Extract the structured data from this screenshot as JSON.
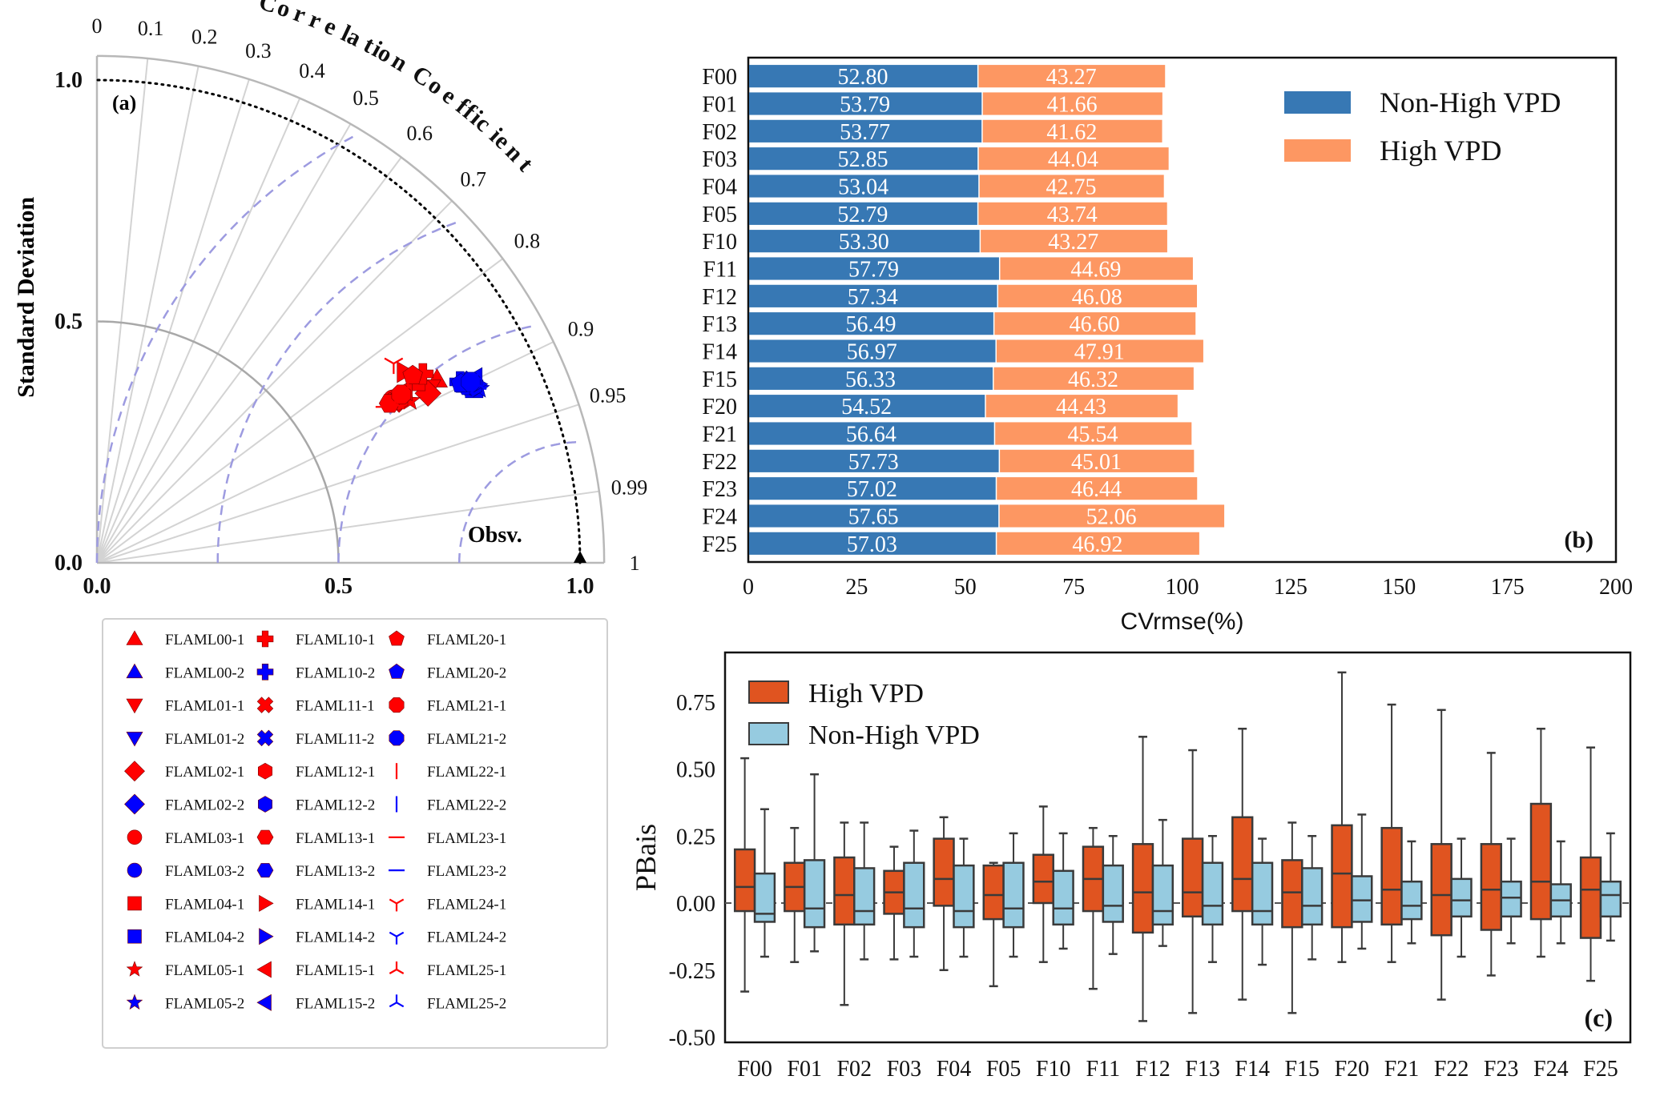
{
  "chart_data": [
    {
      "panel": "a",
      "type": "scatter",
      "subtype": "taylor-diagram",
      "panel_label": "(a)",
      "ylabel": "Standard Deviation",
      "xlabel": "",
      "angular_label": "Correlation Coefficient",
      "std_ticks": [
        "0.0",
        "0.5",
        "1.0"
      ],
      "std_tick_values": [
        0.0,
        0.5,
        1.0
      ],
      "std_max": 1.05,
      "correlation_ticks": [
        0,
        0.1,
        0.2,
        0.3,
        0.4,
        0.5,
        0.6,
        0.7,
        0.8,
        0.9,
        0.95,
        0.99,
        1
      ],
      "correlation_tick_labels": [
        "0",
        "0.1",
        "0.2",
        "0.3",
        "0.4",
        "0.5",
        "0.6",
        "0.7",
        "0.8",
        "0.9",
        "0.95",
        "0.99",
        "1"
      ],
      "rmsd_contours": [
        0.25,
        0.5,
        0.75,
        1.0
      ],
      "reference": {
        "label": "Obsv.",
        "std": 1.0,
        "corr": 1.0
      },
      "grid": true,
      "series_colors": {
        "-1": "#ff0000",
        "-2": "#0000ff"
      },
      "legend": {
        "placement": "below",
        "entries": [
          {
            "label": "FLAML00-1",
            "marker": "triangle-up",
            "color": "#ff0000"
          },
          {
            "label": "FLAML00-2",
            "marker": "triangle-up",
            "color": "#0000ff"
          },
          {
            "label": "FLAML01-1",
            "marker": "triangle-down",
            "color": "#ff0000"
          },
          {
            "label": "FLAML01-2",
            "marker": "triangle-down",
            "color": "#0000ff"
          },
          {
            "label": "FLAML02-1",
            "marker": "diamond",
            "color": "#ff0000"
          },
          {
            "label": "FLAML02-2",
            "marker": "diamond",
            "color": "#0000ff"
          },
          {
            "label": "FLAML03-1",
            "marker": "circle",
            "color": "#ff0000"
          },
          {
            "label": "FLAML03-2",
            "marker": "circle",
            "color": "#0000ff"
          },
          {
            "label": "FLAML04-1",
            "marker": "square",
            "color": "#ff0000"
          },
          {
            "label": "FLAML04-2",
            "marker": "square",
            "color": "#0000ff"
          },
          {
            "label": "FLAML05-1",
            "marker": "star",
            "color": "#ff0000"
          },
          {
            "label": "FLAML05-2",
            "marker": "star",
            "color": "#0000ff"
          },
          {
            "label": "FLAML10-1",
            "marker": "plus-filled",
            "color": "#ff0000"
          },
          {
            "label": "FLAML10-2",
            "marker": "plus-filled",
            "color": "#0000ff"
          },
          {
            "label": "FLAML11-1",
            "marker": "x-filled",
            "color": "#ff0000"
          },
          {
            "label": "FLAML11-2",
            "marker": "x-filled",
            "color": "#0000ff"
          },
          {
            "label": "FLAML12-1",
            "marker": "hexagon-v",
            "color": "#ff0000"
          },
          {
            "label": "FLAML12-2",
            "marker": "hexagon-v",
            "color": "#0000ff"
          },
          {
            "label": "FLAML13-1",
            "marker": "hexagon-h",
            "color": "#ff0000"
          },
          {
            "label": "FLAML13-2",
            "marker": "hexagon-h",
            "color": "#0000ff"
          },
          {
            "label": "FLAML14-1",
            "marker": "triangle-right",
            "color": "#ff0000"
          },
          {
            "label": "FLAML14-2",
            "marker": "triangle-right",
            "color": "#0000ff"
          },
          {
            "label": "FLAML15-1",
            "marker": "triangle-left",
            "color": "#ff0000"
          },
          {
            "label": "FLAML15-2",
            "marker": "triangle-left",
            "color": "#0000ff"
          },
          {
            "label": "FLAML20-1",
            "marker": "pentagon",
            "color": "#ff0000"
          },
          {
            "label": "FLAML20-2",
            "marker": "pentagon",
            "color": "#0000ff"
          },
          {
            "label": "FLAML21-1",
            "marker": "octagon",
            "color": "#ff0000"
          },
          {
            "label": "FLAML21-2",
            "marker": "octagon",
            "color": "#0000ff"
          },
          {
            "label": "FLAML22-1",
            "marker": "vline",
            "color": "#ff0000"
          },
          {
            "label": "FLAML22-2",
            "marker": "vline",
            "color": "#0000ff"
          },
          {
            "label": "FLAML23-1",
            "marker": "hline",
            "color": "#ff0000"
          },
          {
            "label": "FLAML23-2",
            "marker": "hline",
            "color": "#0000ff"
          },
          {
            "label": "FLAML24-1",
            "marker": "tri-down",
            "color": "#ff0000"
          },
          {
            "label": "FLAML24-2",
            "marker": "tri-down",
            "color": "#0000ff"
          },
          {
            "label": "FLAML25-1",
            "marker": "tri-up",
            "color": "#ff0000"
          },
          {
            "label": "FLAML25-2",
            "marker": "tri-up",
            "color": "#0000ff"
          }
        ]
      },
      "points": [
        {
          "label": "FLAML00-1",
          "std": 0.8,
          "corr": 0.88
        },
        {
          "label": "FLAML00-2",
          "std": 0.86,
          "corr": 0.905
        },
        {
          "label": "FLAML01-1",
          "std": 0.78,
          "corr": 0.885
        },
        {
          "label": "FLAML01-2",
          "std": 0.86,
          "corr": 0.9
        },
        {
          "label": "FLAML02-1",
          "std": 0.77,
          "corr": 0.89
        },
        {
          "label": "FLAML02-2",
          "std": 0.85,
          "corr": 0.9
        },
        {
          "label": "FLAML03-1",
          "std": 0.7,
          "corr": 0.875
        },
        {
          "label": "FLAML03-2",
          "std": 0.85,
          "corr": 0.898
        },
        {
          "label": "FLAML04-1",
          "std": 0.76,
          "corr": 0.87
        },
        {
          "label": "FLAML04-2",
          "std": 0.86,
          "corr": 0.908
        },
        {
          "label": "FLAML05-1",
          "std": 0.73,
          "corr": 0.888
        },
        {
          "label": "FLAML05-2",
          "std": 0.87,
          "corr": 0.91
        },
        {
          "label": "FLAML10-1",
          "std": 0.78,
          "corr": 0.865
        },
        {
          "label": "FLAML10-2",
          "std": 0.84,
          "corr": 0.895
        },
        {
          "label": "FLAML11-1",
          "std": 0.7,
          "corr": 0.88
        },
        {
          "label": "FLAML11-2",
          "std": 0.86,
          "corr": 0.903
        },
        {
          "label": "FLAML12-1",
          "std": 0.71,
          "corr": 0.88
        },
        {
          "label": "FLAML12-2",
          "std": 0.86,
          "corr": 0.905
        },
        {
          "label": "FLAML13-1",
          "std": 0.69,
          "corr": 0.878
        },
        {
          "label": "FLAML13-2",
          "std": 0.85,
          "corr": 0.902
        },
        {
          "label": "FLAML14-1",
          "std": 0.75,
          "corr": 0.85
        },
        {
          "label": "FLAML14-2",
          "std": 0.87,
          "corr": 0.905
        },
        {
          "label": "FLAML15-1",
          "std": 0.73,
          "corr": 0.872
        },
        {
          "label": "FLAML15-2",
          "std": 0.87,
          "corr": 0.898
        },
        {
          "label": "FLAML20-1",
          "std": 0.76,
          "corr": 0.86
        },
        {
          "label": "FLAML20-2",
          "std": 0.84,
          "corr": 0.897
        },
        {
          "label": "FLAML21-1",
          "std": 0.72,
          "corr": 0.875
        },
        {
          "label": "FLAML21-2",
          "std": 0.86,
          "corr": 0.9
        },
        {
          "label": "FLAML22-1",
          "std": 0.74,
          "corr": 0.87
        },
        {
          "label": "FLAML22-2",
          "std": 0.86,
          "corr": 0.905
        },
        {
          "label": "FLAML23-1",
          "std": 0.68,
          "corr": 0.88
        },
        {
          "label": "FLAML23-2",
          "std": 0.86,
          "corr": 0.905
        },
        {
          "label": "FLAML24-1",
          "std": 0.74,
          "corr": 0.83
        },
        {
          "label": "FLAML24-2",
          "std": 0.86,
          "corr": 0.902
        },
        {
          "label": "FLAML25-1",
          "std": 0.7,
          "corr": 0.882
        },
        {
          "label": "FLAML25-2",
          "std": 0.87,
          "corr": 0.905
        }
      ]
    },
    {
      "panel": "b",
      "type": "bar",
      "orientation": "horizontal",
      "stacked": true,
      "panel_label": "(b)",
      "title": "",
      "xlabel": "CVrmse(%)",
      "ylabel": "",
      "xlim": [
        0,
        200
      ],
      "xticks": [
        0,
        25,
        50,
        75,
        100,
        125,
        150,
        175,
        200
      ],
      "grid": false,
      "legend_placement": "top-right",
      "categories": [
        "F00",
        "F01",
        "F02",
        "F03",
        "F04",
        "F05",
        "F10",
        "F11",
        "F12",
        "F13",
        "F14",
        "F15",
        "F20",
        "F21",
        "F22",
        "F23",
        "F24",
        "F25"
      ],
      "series": [
        {
          "name": "Non-High VPD",
          "color": "#3778b4",
          "values": [
            52.8,
            53.79,
            53.77,
            52.85,
            53.04,
            52.79,
            53.3,
            57.79,
            57.34,
            56.49,
            56.97,
            56.33,
            54.52,
            56.64,
            57.73,
            57.02,
            57.65,
            57.03
          ],
          "labels": [
            "52.80",
            "53.79",
            "53.77",
            "52.85",
            "53.04",
            "52.79",
            "53.30",
            "57.79",
            "57.34",
            "56.49",
            "56.97",
            "56.33",
            "54.52",
            "56.64",
            "57.73",
            "57.02",
            "57.65",
            "57.03"
          ]
        },
        {
          "name": "High VPD",
          "color": "#fd9762",
          "values": [
            43.27,
            41.66,
            41.62,
            44.04,
            42.75,
            43.74,
            43.27,
            44.69,
            46.08,
            46.6,
            47.91,
            46.32,
            44.43,
            45.54,
            45.01,
            46.44,
            52.06,
            46.92
          ],
          "labels": [
            "43.27",
            "41.66",
            "41.62",
            "44.04",
            "42.75",
            "43.74",
            "43.27",
            "44.69",
            "46.08",
            "46.60",
            "47.91",
            "46.32",
            "44.43",
            "45.54",
            "45.01",
            "46.44",
            "52.06",
            "46.92"
          ]
        }
      ]
    },
    {
      "panel": "c",
      "type": "box",
      "panel_label": "(c)",
      "title": "",
      "xlabel": "",
      "ylabel": "PBais",
      "ylim": [
        -0.5,
        0.9
      ],
      "yticks": [
        -0.5,
        -0.25,
        0.0,
        0.25,
        0.5,
        0.75
      ],
      "ytick_labels": [
        "-0.50",
        "-0.25",
        "0.00",
        "0.25",
        "0.50",
        "0.75"
      ],
      "reference_line": 0.0,
      "grid": false,
      "legend_placement": "top-left",
      "categories": [
        "F00",
        "F01",
        "F02",
        "F03",
        "F04",
        "F05",
        "F10",
        "F11",
        "F12",
        "F13",
        "F14",
        "F15",
        "F20",
        "F21",
        "F22",
        "F23",
        "F24",
        "F25"
      ],
      "series": [
        {
          "name": "High VPD",
          "color": "#e05420",
          "boxes": [
            {
              "whislo": -0.33,
              "q1": -0.03,
              "med": 0.06,
              "q3": 0.2,
              "whishi": 0.54
            },
            {
              "whislo": -0.22,
              "q1": -0.03,
              "med": 0.06,
              "q3": 0.15,
              "whishi": 0.28
            },
            {
              "whislo": -0.38,
              "q1": -0.08,
              "med": 0.03,
              "q3": 0.17,
              "whishi": 0.3
            },
            {
              "whislo": -0.21,
              "q1": -0.04,
              "med": 0.04,
              "q3": 0.12,
              "whishi": 0.21
            },
            {
              "whislo": -0.25,
              "q1": -0.01,
              "med": 0.09,
              "q3": 0.24,
              "whishi": 0.32
            },
            {
              "whislo": -0.31,
              "q1": -0.06,
              "med": 0.03,
              "q3": 0.14,
              "whishi": 0.15
            },
            {
              "whislo": -0.22,
              "q1": 0.0,
              "med": 0.08,
              "q3": 0.18,
              "whishi": 0.36
            },
            {
              "whislo": -0.32,
              "q1": -0.03,
              "med": 0.09,
              "q3": 0.21,
              "whishi": 0.28
            },
            {
              "whislo": -0.44,
              "q1": -0.11,
              "med": 0.04,
              "q3": 0.22,
              "whishi": 0.62
            },
            {
              "whislo": -0.41,
              "q1": -0.05,
              "med": 0.04,
              "q3": 0.24,
              "whishi": 0.57
            },
            {
              "whislo": -0.36,
              "q1": -0.03,
              "med": 0.09,
              "q3": 0.32,
              "whishi": 0.65
            },
            {
              "whislo": -0.41,
              "q1": -0.09,
              "med": 0.04,
              "q3": 0.16,
              "whishi": 0.3
            },
            {
              "whislo": -0.22,
              "q1": -0.09,
              "med": 0.11,
              "q3": 0.29,
              "whishi": 0.86
            },
            {
              "whislo": -0.22,
              "q1": -0.08,
              "med": 0.05,
              "q3": 0.28,
              "whishi": 0.74
            },
            {
              "whislo": -0.36,
              "q1": -0.12,
              "med": 0.03,
              "q3": 0.22,
              "whishi": 0.72
            },
            {
              "whislo": -0.27,
              "q1": -0.1,
              "med": 0.05,
              "q3": 0.22,
              "whishi": 0.56
            },
            {
              "whislo": -0.2,
              "q1": -0.06,
              "med": 0.08,
              "q3": 0.37,
              "whishi": 0.65
            },
            {
              "whislo": -0.29,
              "q1": -0.13,
              "med": 0.05,
              "q3": 0.17,
              "whishi": 0.58
            }
          ]
        },
        {
          "name": "Non-High VPD",
          "color": "#96cbe0",
          "boxes": [
            {
              "whislo": -0.2,
              "q1": -0.07,
              "med": -0.04,
              "q3": 0.11,
              "whishi": 0.35
            },
            {
              "whislo": -0.18,
              "q1": -0.09,
              "med": -0.02,
              "q3": 0.16,
              "whishi": 0.48
            },
            {
              "whislo": -0.21,
              "q1": -0.08,
              "med": -0.03,
              "q3": 0.13,
              "whishi": 0.3
            },
            {
              "whislo": -0.2,
              "q1": -0.09,
              "med": -0.02,
              "q3": 0.15,
              "whishi": 0.27
            },
            {
              "whislo": -0.2,
              "q1": -0.09,
              "med": -0.03,
              "q3": 0.14,
              "whishi": 0.24
            },
            {
              "whislo": -0.2,
              "q1": -0.09,
              "med": -0.02,
              "q3": 0.15,
              "whishi": 0.26
            },
            {
              "whislo": -0.17,
              "q1": -0.08,
              "med": -0.02,
              "q3": 0.12,
              "whishi": 0.26
            },
            {
              "whislo": -0.19,
              "q1": -0.07,
              "med": -0.01,
              "q3": 0.14,
              "whishi": 0.25
            },
            {
              "whislo": -0.16,
              "q1": -0.08,
              "med": -0.03,
              "q3": 0.14,
              "whishi": 0.31
            },
            {
              "whislo": -0.22,
              "q1": -0.08,
              "med": -0.01,
              "q3": 0.15,
              "whishi": 0.25
            },
            {
              "whislo": -0.23,
              "q1": -0.08,
              "med": -0.03,
              "q3": 0.15,
              "whishi": 0.24
            },
            {
              "whislo": -0.21,
              "q1": -0.08,
              "med": -0.01,
              "q3": 0.13,
              "whishi": 0.25
            },
            {
              "whislo": -0.17,
              "q1": -0.07,
              "med": 0.01,
              "q3": 0.1,
              "whishi": 0.33
            },
            {
              "whislo": -0.15,
              "q1": -0.06,
              "med": -0.01,
              "q3": 0.08,
              "whishi": 0.23
            },
            {
              "whislo": -0.2,
              "q1": -0.05,
              "med": 0.01,
              "q3": 0.09,
              "whishi": 0.24
            },
            {
              "whislo": -0.15,
              "q1": -0.05,
              "med": 0.02,
              "q3": 0.08,
              "whishi": 0.24
            },
            {
              "whislo": -0.15,
              "q1": -0.05,
              "med": 0.01,
              "q3": 0.07,
              "whishi": 0.23
            },
            {
              "whislo": -0.14,
              "q1": -0.05,
              "med": 0.03,
              "q3": 0.08,
              "whishi": 0.26
            }
          ]
        }
      ]
    }
  ]
}
